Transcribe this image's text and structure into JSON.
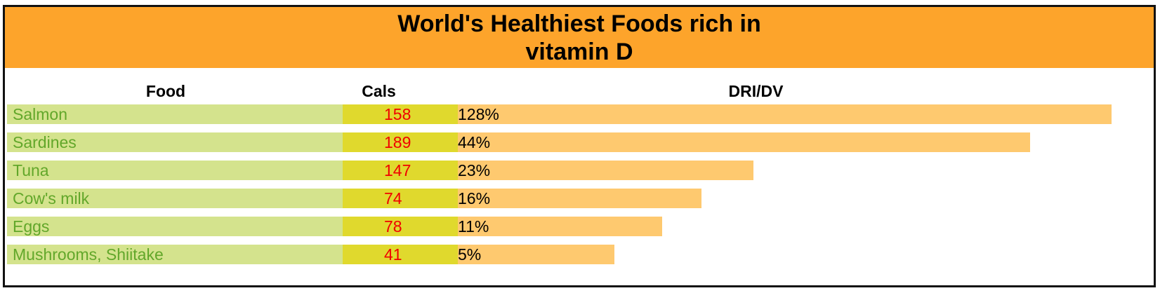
{
  "chart_data": {
    "type": "table",
    "title_lines": [
      "World's Healthiest Foods rich in",
      "vitamin D"
    ],
    "columns": [
      "Food",
      "Cals",
      "DRI/DV"
    ],
    "rows": [
      {
        "food": "Salmon",
        "cals": "158",
        "dri_dv": "128%",
        "dri_value": 128
      },
      {
        "food": "Sardines",
        "cals": "189",
        "dri_dv": "44%",
        "dri_value": 44
      },
      {
        "food": "Tuna",
        "cals": "147",
        "dri_dv": "23%",
        "dri_value": 23
      },
      {
        "food": "Cow's milk",
        "cals": "74",
        "dri_dv": "16%",
        "dri_value": 16
      },
      {
        "food": "Eggs",
        "cals": "78",
        "dri_dv": "11%",
        "dri_value": 11
      },
      {
        "food": "Mushrooms, Shiitake",
        "cals": "41",
        "dri_dv": "5%",
        "dri_value": 5
      }
    ],
    "bar_fraction_of_track": [
      1.0,
      0.875,
      0.4525,
      0.3725,
      0.3125,
      0.24
    ]
  },
  "colors": {
    "title_band": "#fda42b",
    "food_cell": "#d4e38d",
    "food_text": "#62a72a",
    "cals_cell": "#e0d92d",
    "cals_text": "#f00000",
    "bar": "#fec96f"
  }
}
